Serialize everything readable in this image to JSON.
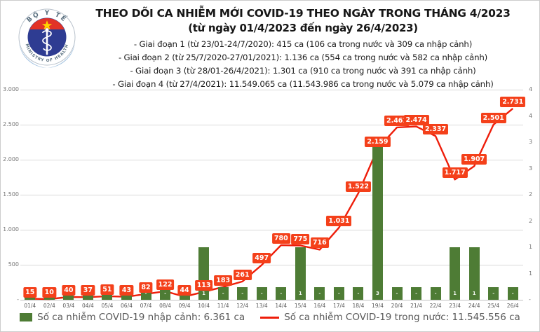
{
  "header": {
    "title": "THEO DÕI CA NHIỄM MỚI COVID-19 THEO NGÀY TRONG THÁNG 4/2023",
    "subtitle": "(từ ngày 01/4/2023 đến ngày 26/4/2023)",
    "notes": [
      "- Giai đoạn 1 (từ 23/01-24/7/2020): 415 ca (106 ca trong nước và 309 ca nhập cảnh)",
      "- Giai đoạn 2 (từ 25/7/2020-27/01/2021): 1.136 ca (554 ca trong nước và 582 ca nhập cảnh)",
      "- Giai đoạn 3 (từ 28/01-26/4/2021): 1.301 ca (910 ca trong nước và 391 ca nhập cảnh)",
      "- Giai đoạn 4 (từ 27/4/2021): 11.549.065 ca (11.543.986 ca trong nước và 5.079 ca nhập cảnh)"
    ]
  },
  "logo": {
    "top_text": "BỘ Y TẾ",
    "bottom_text": "MINISTRY OF HEALTH"
  },
  "chart_data": {
    "type": "combo-bar-line",
    "categories": [
      "01/4",
      "02/4",
      "03/4",
      "04/4",
      "05/4",
      "06/4",
      "07/4",
      "08/4",
      "09/4",
      "10/4",
      "11/4",
      "12/4",
      "13/4",
      "14/4",
      "15/4",
      "16/4",
      "17/4",
      "18/4",
      "19/4",
      "20/4",
      "21/4",
      "22/4",
      "23/4",
      "24/4",
      "25/4",
      "26/4"
    ],
    "series": [
      {
        "name": "Số ca nhiễm COVID-19 nhập cảnh",
        "type": "bar",
        "axis": "right",
        "color": "#4e7c35",
        "values": [
          0,
          0,
          0,
          0,
          0,
          0,
          0,
          0,
          0,
          1,
          0,
          0,
          0,
          0,
          1,
          0,
          0,
          0,
          3,
          0,
          0,
          0,
          1,
          1,
          0,
          0
        ],
        "labels": [
          "-",
          "-",
          "-",
          "-",
          "-",
          "-",
          "-",
          "-",
          "-",
          "1",
          "-",
          "-",
          "-",
          "-",
          "1",
          "-",
          "-",
          "-",
          "3",
          "-",
          "-",
          "-",
          "1",
          "1",
          "-",
          "-"
        ]
      },
      {
        "name": "Số ca nhiễm COVID-19 trong nước",
        "type": "line",
        "axis": "left",
        "color": "#ee1d0a",
        "label_bg": "#f4401a",
        "values": [
          15,
          10,
          40,
          37,
          51,
          43,
          82,
          122,
          44,
          113,
          183,
          261,
          497,
          780,
          775,
          716,
          1031,
          1522,
          2159,
          2461,
          2474,
          2337,
          1717,
          1907,
          2501,
          2731
        ],
        "labels": [
          "15",
          "10",
          "40",
          "37",
          "51",
          "43",
          "82",
          "122",
          "44",
          "113",
          "183",
          "261",
          "497",
          "780",
          "775",
          "716",
          "1.031",
          "1.522",
          "2.159",
          "2.461",
          "2.474",
          "2.337",
          "1.717",
          "1.907",
          "2.501",
          "2.731"
        ]
      }
    ],
    "left_axis": {
      "min": 0,
      "max": 3000,
      "tick_labels": [
        "3.000",
        "2.500",
        "2.000",
        "1.500",
        "1.000",
        "500",
        "-"
      ]
    },
    "right_axis": {
      "min": 0,
      "max": 4,
      "tick_labels": [
        "4",
        "4",
        "3",
        "3",
        "2",
        "2",
        "1",
        "1",
        "-"
      ]
    },
    "grid": true,
    "legend_position": "bottom"
  },
  "legend": [
    {
      "type": "bar",
      "color": "#4e7c35",
      "label": "Số ca nhiễm COVID-19 nhập cảnh: 6.361 ca"
    },
    {
      "type": "line",
      "color": "#ee1d0a",
      "label": "Số ca nhiễm COVID-19 trong nước: 11.545.556 ca"
    }
  ],
  "colors": {
    "bar_green": "#4e7c35",
    "line_red": "#ee1d0a",
    "label_box": "#f4401a",
    "grid": "#d9d9d9"
  }
}
